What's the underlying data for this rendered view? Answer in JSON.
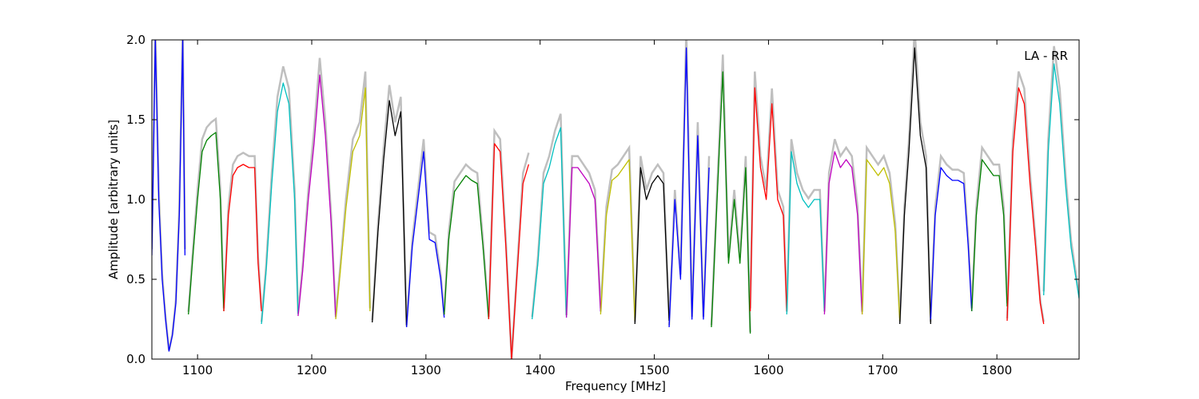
{
  "chart_data": {
    "type": "line",
    "title": "",
    "xlabel": "Frequency [MHz]",
    "ylabel": "Amplitude [arbitrary units]",
    "annotation": "LA - RR",
    "xlim": [
      1060,
      1872
    ],
    "ylim": [
      0.0,
      2.0
    ],
    "x_ticks": [
      1100,
      1200,
      1300,
      1400,
      1500,
      1600,
      1700,
      1800
    ],
    "x_tick_labels": [
      "1100",
      "1200",
      "1300",
      "1400",
      "1500",
      "1600",
      "1700",
      "1800"
    ],
    "y_ticks": [
      0.0,
      0.5,
      1.0,
      1.5,
      2.0
    ],
    "y_tick_labels": [
      "0.0",
      "0.5",
      "1.0",
      "1.5",
      "2.0"
    ],
    "grid": false,
    "series": [
      {
        "color": "#0000ff",
        "x": [
          1060,
          1063,
          1066,
          1069,
          1072,
          1075,
          1078,
          1081,
          1084,
          1087,
          1089
        ],
        "y": [
          0.65,
          2.0,
          1.0,
          0.5,
          0.25,
          0.05,
          0.15,
          0.35,
          0.9,
          2.0,
          0.65
        ]
      },
      {
        "color": "#008000",
        "x": [
          1092,
          1096,
          1100,
          1104,
          1108,
          1112,
          1116,
          1120,
          1123
        ],
        "y": [
          0.28,
          0.65,
          1.0,
          1.3,
          1.37,
          1.4,
          1.42,
          1.0,
          0.3
        ]
      },
      {
        "color": "#ff0000",
        "x": [
          1123,
          1127,
          1131,
          1135,
          1140,
          1145,
          1150,
          1153,
          1156
        ],
        "y": [
          0.3,
          0.9,
          1.15,
          1.2,
          1.22,
          1.2,
          1.2,
          0.6,
          0.3
        ]
      },
      {
        "color": "#00bfbf",
        "x": [
          1156,
          1160,
          1165,
          1170,
          1175,
          1180,
          1185,
          1188
        ],
        "y": [
          0.22,
          0.55,
          1.1,
          1.55,
          1.73,
          1.6,
          1.0,
          0.28
        ]
      },
      {
        "color": "#bf00bf",
        "x": [
          1188,
          1192,
          1197,
          1202,
          1207,
          1212,
          1217,
          1221
        ],
        "y": [
          0.27,
          0.55,
          1.0,
          1.35,
          1.78,
          1.4,
          0.85,
          0.26
        ]
      },
      {
        "color": "#bfbf00",
        "x": [
          1221,
          1225,
          1230,
          1236,
          1242,
          1247,
          1251
        ],
        "y": [
          0.25,
          0.55,
          0.95,
          1.3,
          1.4,
          1.7,
          0.3
        ]
      },
      {
        "color": "#000000",
        "x": [
          1253,
          1258,
          1263,
          1268,
          1273,
          1278,
          1283
        ],
        "y": [
          0.23,
          0.8,
          1.25,
          1.62,
          1.4,
          1.55,
          0.2
        ]
      },
      {
        "color": "#0000ff",
        "x": [
          1283,
          1288,
          1293,
          1298,
          1303,
          1308,
          1313,
          1316
        ],
        "y": [
          0.2,
          0.7,
          1.0,
          1.3,
          0.75,
          0.73,
          0.5,
          0.26
        ]
      },
      {
        "color": "#008000",
        "x": [
          1316,
          1320,
          1325,
          1330,
          1335,
          1340,
          1345,
          1350,
          1355
        ],
        "y": [
          0.28,
          0.75,
          1.05,
          1.1,
          1.15,
          1.12,
          1.1,
          0.7,
          0.25
        ]
      },
      {
        "color": "#ff0000",
        "x": [
          1355,
          1360,
          1365,
          1370,
          1375,
          1380,
          1385,
          1390
        ],
        "y": [
          0.25,
          1.35,
          1.3,
          0.7,
          0.0,
          0.55,
          1.1,
          1.22
        ]
      },
      {
        "color": "#00bfbf",
        "x": [
          1393,
          1398,
          1403,
          1408,
          1413,
          1418,
          1423
        ],
        "y": [
          0.25,
          0.6,
          1.1,
          1.2,
          1.35,
          1.45,
          0.26
        ]
      },
      {
        "color": "#bf00bf",
        "x": [
          1423,
          1428,
          1433,
          1438,
          1443,
          1448,
          1453
        ],
        "y": [
          0.26,
          1.2,
          1.2,
          1.15,
          1.1,
          1.0,
          0.3
        ]
      },
      {
        "color": "#bfbf00",
        "x": [
          1453,
          1458,
          1463,
          1468,
          1473,
          1478,
          1483
        ],
        "y": [
          0.28,
          0.9,
          1.12,
          1.15,
          1.2,
          1.25,
          0.24
        ]
      },
      {
        "color": "#000000",
        "x": [
          1483,
          1488,
          1493,
          1498,
          1503,
          1508,
          1513
        ],
        "y": [
          0.22,
          1.2,
          1.0,
          1.1,
          1.15,
          1.1,
          0.24
        ]
      },
      {
        "color": "#0000ff",
        "x": [
          1513,
          1518,
          1523,
          1528,
          1533,
          1538,
          1543,
          1548
        ],
        "y": [
          0.2,
          1.0,
          0.5,
          1.95,
          0.25,
          1.4,
          0.25,
          1.2
        ]
      },
      {
        "color": "#008000",
        "x": [
          1550,
          1555,
          1560,
          1565,
          1570,
          1575,
          1580,
          1584
        ],
        "y": [
          0.2,
          1.0,
          1.8,
          0.6,
          1.0,
          0.6,
          1.2,
          0.16
        ]
      },
      {
        "color": "#ff0000",
        "x": [
          1584,
          1588,
          1593,
          1598,
          1603,
          1608,
          1613,
          1616
        ],
        "y": [
          0.3,
          1.7,
          1.2,
          1.0,
          1.6,
          1.0,
          0.9,
          0.3
        ]
      },
      {
        "color": "#00bfbf",
        "x": [
          1616,
          1620,
          1625,
          1630,
          1635,
          1640,
          1645,
          1649
        ],
        "y": [
          0.28,
          1.3,
          1.1,
          1.0,
          0.95,
          1.0,
          1.0,
          0.3
        ]
      },
      {
        "color": "#bf00bf",
        "x": [
          1649,
          1653,
          1658,
          1663,
          1668,
          1673,
          1678,
          1682
        ],
        "y": [
          0.28,
          1.1,
          1.3,
          1.2,
          1.25,
          1.2,
          0.9,
          0.28
        ]
      },
      {
        "color": "#bfbf00",
        "x": [
          1682,
          1686,
          1691,
          1696,
          1701,
          1706,
          1711,
          1715
        ],
        "y": [
          0.28,
          1.25,
          1.2,
          1.15,
          1.2,
          1.1,
          0.8,
          0.24
        ]
      },
      {
        "color": "#000000",
        "x": [
          1715,
          1719,
          1723,
          1728,
          1733,
          1738,
          1742
        ],
        "y": [
          0.22,
          0.9,
          1.3,
          1.95,
          1.4,
          1.2,
          0.22
        ]
      },
      {
        "color": "#0000ff",
        "x": [
          1742,
          1746,
          1751,
          1756,
          1761,
          1766,
          1771,
          1775,
          1778
        ],
        "y": [
          0.25,
          0.9,
          1.2,
          1.15,
          1.12,
          1.12,
          1.1,
          0.7,
          0.3
        ]
      },
      {
        "color": "#008000",
        "x": [
          1778,
          1782,
          1787,
          1792,
          1797,
          1802,
          1806,
          1809
        ],
        "y": [
          0.3,
          0.9,
          1.25,
          1.2,
          1.15,
          1.15,
          0.9,
          0.33
        ]
      },
      {
        "color": "#ff0000",
        "x": [
          1809,
          1814,
          1819,
          1824,
          1829,
          1834,
          1838,
          1841
        ],
        "y": [
          0.24,
          1.3,
          1.7,
          1.6,
          1.1,
          0.7,
          0.35,
          0.22
        ]
      },
      {
        "color": "#00bfbf",
        "x": [
          1841,
          1845,
          1850,
          1855,
          1860,
          1865,
          1872
        ],
        "y": [
          0.4,
          1.3,
          1.85,
          1.6,
          1.1,
          0.7,
          0.38
        ]
      }
    ]
  }
}
